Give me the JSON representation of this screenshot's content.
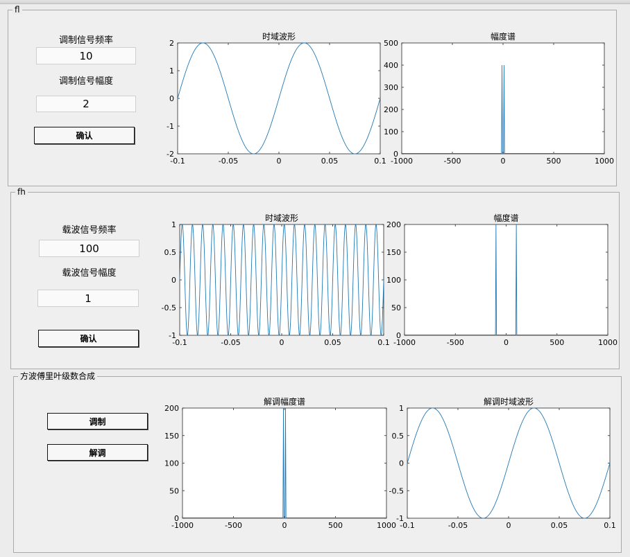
{
  "panels": {
    "fl": {
      "title": "fl",
      "freq_label": "调制信号频率",
      "freq_value": "10",
      "amp_label": "调制信号幅度",
      "amp_value": "2",
      "confirm_label": "确认"
    },
    "fh": {
      "title": "fh",
      "freq_label": "载波信号频率",
      "freq_value": "100",
      "amp_label": "载波信号幅度",
      "amp_value": "1",
      "confirm_label": "确认"
    },
    "synth": {
      "title": "方波傅里叶级数合成",
      "modulate_label": "调制",
      "demodulate_label": "解调"
    }
  },
  "colors": {
    "line": "#1f77b4"
  },
  "chart_data": [
    {
      "id": "fl_time",
      "type": "line",
      "title": "时域波形",
      "xlim": [
        -0.1,
        0.1
      ],
      "ylim": [
        -2,
        2
      ],
      "xticks": [
        -0.1,
        -0.05,
        0,
        0.05,
        0.1
      ],
      "xticklabels": [
        "-0.1",
        "-0.05",
        "0",
        "0.05",
        "0.1"
      ],
      "yticks": [
        -2,
        -1,
        0,
        1,
        2
      ],
      "yticklabels": [
        "-2",
        "-1",
        "0",
        "1",
        "2"
      ],
      "series": [
        {
          "function": "sin",
          "amplitude": 2,
          "frequency": 10
        }
      ]
    },
    {
      "id": "fl_spec",
      "type": "line",
      "title": "幅度谱",
      "xlim": [
        -1000,
        1000
      ],
      "ylim": [
        0,
        500
      ],
      "xticks": [
        -1000,
        -500,
        0,
        500,
        1000
      ],
      "xticklabels": [
        "-1000",
        "-500",
        "0",
        "500",
        "1000"
      ],
      "yticks": [
        0,
        100,
        200,
        300,
        400,
        500
      ],
      "yticklabels": [
        "0",
        "100",
        "200",
        "300",
        "400",
        "500"
      ],
      "series": [
        {
          "peaks": [
            {
              "x": -10,
              "y": 400
            },
            {
              "x": 10,
              "y": 400
            }
          ]
        }
      ]
    },
    {
      "id": "fh_time",
      "type": "line",
      "title": "时域波形",
      "xlim": [
        -0.1,
        0.1
      ],
      "ylim": [
        -1,
        1
      ],
      "xticks": [
        -0.1,
        -0.05,
        0,
        0.05,
        0.1
      ],
      "xticklabels": [
        "-0.1",
        "-0.05",
        "0",
        "0.05",
        "0.1"
      ],
      "yticks": [
        -1,
        -0.5,
        0,
        0.5,
        1
      ],
      "yticklabels": [
        "-1",
        "-0.5",
        "0",
        "0.5",
        "1"
      ],
      "series": [
        {
          "function": "sin",
          "amplitude": 1,
          "frequency": 100
        }
      ]
    },
    {
      "id": "fh_spec",
      "type": "line",
      "title": "幅度谱",
      "xlim": [
        -1000,
        1000
      ],
      "ylim": [
        0,
        200
      ],
      "xticks": [
        -1000,
        -500,
        0,
        500,
        1000
      ],
      "xticklabels": [
        "-1000",
        "-500",
        "0",
        "500",
        "1000"
      ],
      "yticks": [
        0,
        50,
        100,
        150,
        200
      ],
      "yticklabels": [
        "0",
        "50",
        "100",
        "150",
        "200"
      ],
      "series": [
        {
          "peaks": [
            {
              "x": -100,
              "y": 200
            },
            {
              "x": 100,
              "y": 200
            }
          ]
        }
      ]
    },
    {
      "id": "demod_spec",
      "type": "line",
      "title": "解调幅度谱",
      "xlim": [
        -1000,
        1000
      ],
      "ylim": [
        0,
        200
      ],
      "xticks": [
        -1000,
        -500,
        0,
        500,
        1000
      ],
      "xticklabels": [
        "-1000",
        "-500",
        "0",
        "500",
        "1000"
      ],
      "yticks": [
        0,
        50,
        100,
        150,
        200
      ],
      "yticklabels": [
        "0",
        "50",
        "100",
        "150",
        "200"
      ],
      "series": [
        {
          "peaks": [
            {
              "x": -10,
              "y": 200
            },
            {
              "x": 10,
              "y": 200
            }
          ]
        }
      ]
    },
    {
      "id": "demod_time",
      "type": "line",
      "title": "解调时域波形",
      "xlim": [
        -0.1,
        0.1
      ],
      "ylim": [
        -1,
        1
      ],
      "xticks": [
        -0.1,
        -0.05,
        0,
        0.05,
        0.1
      ],
      "xticklabels": [
        "-0.1",
        "-0.05",
        "0",
        "0.05",
        "0.1"
      ],
      "yticks": [
        -1,
        -0.5,
        0,
        0.5,
        1
      ],
      "yticklabels": [
        "-1",
        "-0.5",
        "0",
        "0.5",
        "1"
      ],
      "series": [
        {
          "function": "sin",
          "amplitude": 1,
          "frequency": 10
        }
      ]
    }
  ]
}
